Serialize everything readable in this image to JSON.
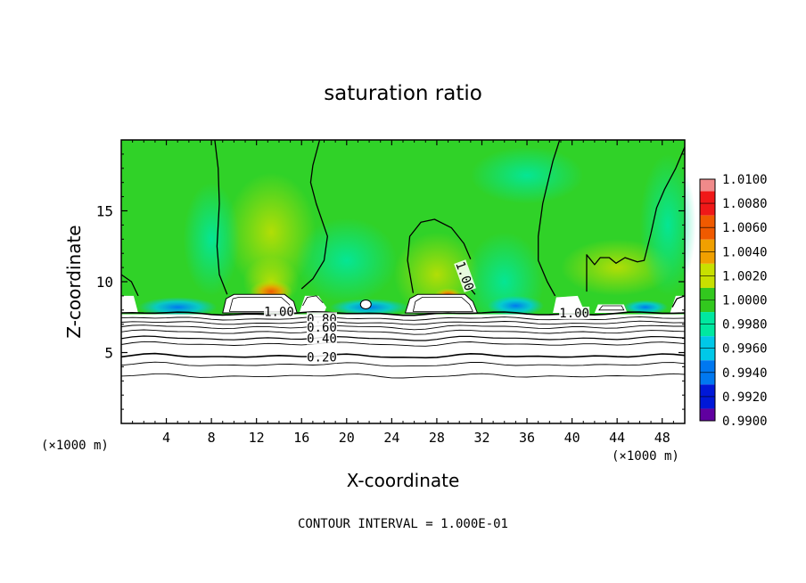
{
  "chart_data": {
    "type": "heatmap",
    "title": "saturation ratio",
    "xlabel": "X-coordinate",
    "ylabel": "Z-coordinate",
    "x_unit_left": "(×1000 m)",
    "x_unit_right": "(×1000 m)",
    "xlim": [
      0,
      50
    ],
    "ylim": [
      0,
      20
    ],
    "x_ticks": [
      4,
      8,
      12,
      16,
      20,
      24,
      28,
      32,
      36,
      40,
      44,
      48
    ],
    "x_tick_labels": [
      "4",
      "8",
      "12",
      "16",
      "20",
      "24",
      "28",
      "32",
      "36",
      "40",
      "44",
      "48"
    ],
    "y_ticks": [
      5,
      10,
      15
    ],
    "y_tick_labels": [
      "5",
      "10",
      "15"
    ],
    "footer": "CONTOUR INTERVAL = 1.000E-01",
    "colorbar": {
      "min": 0.99,
      "max": 1.01,
      "labels": [
        "1.0100",
        "1.0080",
        "1.0060",
        "1.0040",
        "1.0020",
        "1.0000",
        "0.9980",
        "0.9960",
        "0.9940",
        "0.9920",
        "0.9900"
      ],
      "colors": [
        "#f08a8a",
        "#f01818",
        "#f05a00",
        "#f0a000",
        "#c8e000",
        "#32c81e",
        "#00e8a0",
        "#00c8e8",
        "#0078f0",
        "#0018d8",
        "#6000a0"
      ]
    },
    "contour_labels": [
      {
        "text": "1.00",
        "x": 30.5,
        "z": 10.4
      },
      {
        "text": "1.00",
        "x": 14.0,
        "z": 7.9
      },
      {
        "text": "1.00",
        "x": 40.2,
        "z": 7.8
      },
      {
        "text": "0.80",
        "x": 17.8,
        "z": 7.4
      },
      {
        "text": "0.60",
        "x": 17.8,
        "z": 6.8
      },
      {
        "text": "0.40",
        "x": 17.8,
        "z": 6.0
      },
      {
        "text": "0.20",
        "x": 17.8,
        "z": 4.7
      }
    ]
  }
}
